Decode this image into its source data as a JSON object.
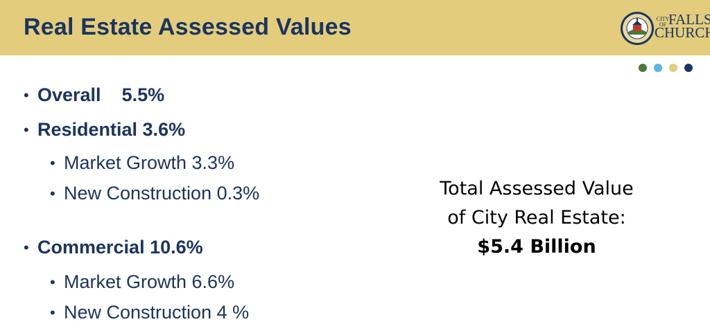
{
  "slide": {
    "title": "Real Estate Assessed Values"
  },
  "logo": {
    "small_text": "CITY OF",
    "line1": "FALLS",
    "line2": "CHURCH",
    "seal_label": "City of Falls Church Virginia seal"
  },
  "accent_dots": [
    "#4a7a3a",
    "#5ab4e4",
    "#e3cc7b",
    "#1b3561"
  ],
  "bullets": [
    {
      "level": 1,
      "text": "Overall    5.5%"
    },
    {
      "level": 1,
      "text": "Residential 3.6%"
    },
    {
      "level": 2,
      "text": "Market Growth 3.3%"
    },
    {
      "level": 2,
      "text": "New Construction 0.3%"
    },
    {
      "level": 1,
      "text": "Commercial 10.6%"
    },
    {
      "level": 2,
      "text": "Market Growth 6.6%"
    },
    {
      "level": 2,
      "text": "New Construction 4 %"
    }
  ],
  "summary": {
    "line1": "Total Assessed Value",
    "line2": "of City Real Estate:",
    "amount": "$5.4 Billion"
  },
  "colors": {
    "header_bg": "#e3cc7b",
    "title_text": "#1b3561",
    "body_text": "#1b3561"
  }
}
